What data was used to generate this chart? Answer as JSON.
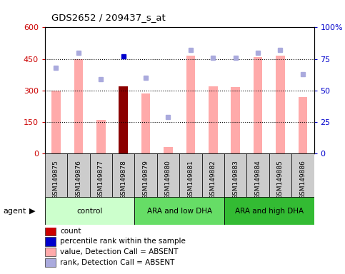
{
  "title": "GDS2652 / 209437_s_at",
  "samples": [
    "GSM149875",
    "GSM149876",
    "GSM149877",
    "GSM149878",
    "GSM149879",
    "GSM149880",
    "GSM149881",
    "GSM149882",
    "GSM149883",
    "GSM149884",
    "GSM149885",
    "GSM149886"
  ],
  "bar_values": [
    300,
    450,
    160,
    320,
    285,
    30,
    465,
    320,
    315,
    460,
    465,
    270
  ],
  "bar_colors": [
    "#ffaaaa",
    "#ffaaaa",
    "#ffaaaa",
    "#8b0000",
    "#ffaaaa",
    "#ffaaaa",
    "#ffaaaa",
    "#ffaaaa",
    "#ffaaaa",
    "#ffaaaa",
    "#ffaaaa",
    "#ffaaaa"
  ],
  "rank_dots_pct": [
    68,
    80,
    59,
    77,
    60,
    29,
    82,
    76,
    76,
    80,
    82,
    63
  ],
  "rank_dot_colors": [
    "#aaaadd",
    "#aaaadd",
    "#aaaadd",
    "#0000cc",
    "#aaaadd",
    "#aaaadd",
    "#aaaadd",
    "#aaaadd",
    "#aaaadd",
    "#aaaadd",
    "#aaaadd",
    "#aaaadd"
  ],
  "ylim_left": [
    0,
    600
  ],
  "ylim_right": [
    0,
    100
  ],
  "yticks_left": [
    0,
    150,
    300,
    450,
    600
  ],
  "yticks_right": [
    0,
    25,
    50,
    75,
    100
  ],
  "ytick_labels_right": [
    "0",
    "25",
    "50",
    "75",
    "100%"
  ],
  "hlines": [
    150,
    300,
    450
  ],
  "groups": [
    {
      "label": "control",
      "start": 0,
      "end": 3,
      "color": "#ccffcc"
    },
    {
      "label": "ARA and low DHA",
      "start": 4,
      "end": 7,
      "color": "#66dd66"
    },
    {
      "label": "ARA and high DHA",
      "start": 8,
      "end": 11,
      "color": "#33bb33"
    }
  ],
  "legend_items": [
    {
      "label": "count",
      "color": "#cc0000"
    },
    {
      "label": "percentile rank within the sample",
      "color": "#0000cc"
    },
    {
      "label": "value, Detection Call = ABSENT",
      "color": "#ffaaaa"
    },
    {
      "label": "rank, Detection Call = ABSENT",
      "color": "#aaaadd"
    }
  ],
  "left_tick_color": "#cc0000",
  "right_tick_color": "#0000cc",
  "bar_width": 0.4,
  "figsize": [
    4.83,
    3.84
  ],
  "dpi": 100,
  "bg_color": "#ffffff",
  "xtick_bg": "#cccccc"
}
